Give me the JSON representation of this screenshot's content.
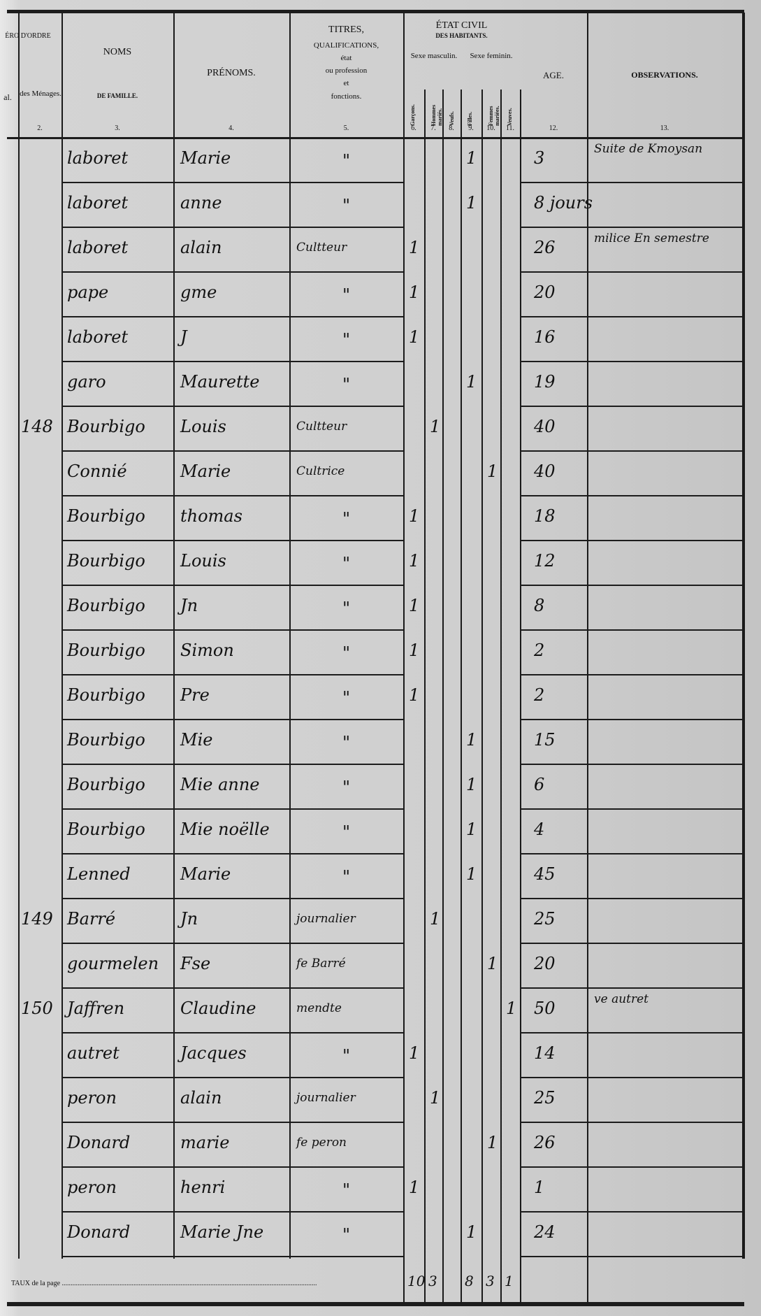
{
  "header": {
    "col1_title": "ÉRO D'ORDRE",
    "col1_sub": "al.",
    "col2": "des Ménages.",
    "noms": "NOMS",
    "noms_sub": "DE FAMILLE.",
    "prenoms": "PRÉNOMS.",
    "titres": "TITRES,",
    "titres_sub": [
      "QUALIFICATIONS,",
      "état",
      "ou profession",
      "et",
      "fonctions."
    ],
    "etat_civil": "ÉTAT CIVIL",
    "etat_sub": "DES HABITANTS.",
    "sexe_m": "Sexe masculin.",
    "sexe_f": "Sexe feminin.",
    "sub_cols": [
      "Garçons.",
      "Hommes mariés.",
      "Veufs.",
      "Filles.",
      "Femmes mariées.",
      "Veuves."
    ],
    "age": "AGE.",
    "observations": "OBSERVATIONS.",
    "numbers": [
      "2.",
      "3.",
      "4.",
      "5.",
      "6.",
      "7.",
      "8.",
      "9.",
      "10.",
      "11.",
      "12.",
      "13."
    ]
  },
  "rows": [
    {
      "menage": "",
      "nom": "laboret",
      "prenom": "Marie",
      "titre": "\"",
      "col": 9,
      "age": "3",
      "obs": "Suite de Kmoysan"
    },
    {
      "menage": "",
      "nom": "laboret",
      "prenom": "anne",
      "titre": "\"",
      "col": 9,
      "age": "8 jours",
      "obs": ""
    },
    {
      "menage": "",
      "nom": "laboret",
      "prenom": "alain",
      "titre": "Cultteur",
      "col": 6,
      "age": "26",
      "obs": "milice En semestre"
    },
    {
      "menage": "",
      "nom": "pape",
      "prenom": "gme",
      "titre": "\"",
      "col": 6,
      "age": "20",
      "obs": ""
    },
    {
      "menage": "",
      "nom": "laboret",
      "prenom": "J",
      "titre": "\"",
      "col": 6,
      "age": "16",
      "obs": ""
    },
    {
      "menage": "",
      "nom": "garo",
      "prenom": "Maurette",
      "titre": "\"",
      "col": 9,
      "age": "19",
      "obs": ""
    },
    {
      "menage": "148",
      "nom": "Bourbigo",
      "prenom": "Louis",
      "titre": "Cultteur",
      "col": 7,
      "age": "40",
      "obs": ""
    },
    {
      "menage": "",
      "nom": "Connié",
      "prenom": "Marie",
      "titre": "Cultrice",
      "col": 10,
      "age": "40",
      "obs": ""
    },
    {
      "menage": "",
      "nom": "Bourbigo",
      "prenom": "thomas",
      "titre": "\"",
      "col": 6,
      "age": "18",
      "obs": ""
    },
    {
      "menage": "",
      "nom": "Bourbigo",
      "prenom": "Louis",
      "titre": "\"",
      "col": 6,
      "age": "12",
      "obs": ""
    },
    {
      "menage": "",
      "nom": "Bourbigo",
      "prenom": "Jn",
      "titre": "\"",
      "col": 6,
      "age": "8",
      "obs": ""
    },
    {
      "menage": "",
      "nom": "Bourbigo",
      "prenom": "Simon",
      "titre": "\"",
      "col": 6,
      "age": "2",
      "obs": ""
    },
    {
      "menage": "",
      "nom": "Bourbigo",
      "prenom": "Pre",
      "titre": "\"",
      "col": 6,
      "age": "2",
      "obs": ""
    },
    {
      "menage": "",
      "nom": "Bourbigo",
      "prenom": "Mie",
      "titre": "\"",
      "col": 9,
      "age": "15",
      "obs": ""
    },
    {
      "menage": "",
      "nom": "Bourbigo",
      "prenom": "Mie anne",
      "titre": "\"",
      "col": 9,
      "age": "6",
      "obs": ""
    },
    {
      "menage": "",
      "nom": "Bourbigo",
      "prenom": "Mie noëlle",
      "titre": "\"",
      "col": 9,
      "age": "4",
      "obs": ""
    },
    {
      "menage": "",
      "nom": "Lenned",
      "prenom": "Marie",
      "titre": "\"",
      "col": 9,
      "age": "45",
      "obs": ""
    },
    {
      "menage": "149",
      "nom": "Barré",
      "prenom": "Jn",
      "titre": "journalier",
      "col": 7,
      "age": "25",
      "obs": ""
    },
    {
      "menage": "",
      "nom": "gourmelen",
      "prenom": "Fse",
      "titre": "fe Barré",
      "col": 10,
      "age": "20",
      "obs": ""
    },
    {
      "menage": "150",
      "nom": "Jaffren",
      "prenom": "Claudine",
      "titre": "mendte",
      "col": 11,
      "age": "50",
      "obs": "ve autret"
    },
    {
      "menage": "",
      "nom": "autret",
      "prenom": "Jacques",
      "titre": "\"",
      "col": 6,
      "age": "14",
      "obs": ""
    },
    {
      "menage": "",
      "nom": "peron",
      "prenom": "alain",
      "titre": "journalier",
      "col": 7,
      "age": "25",
      "obs": ""
    },
    {
      "menage": "",
      "nom": "Donard",
      "prenom": "marie",
      "titre": "fe peron",
      "col": 10,
      "age": "26",
      "obs": ""
    },
    {
      "menage": "",
      "nom": "peron",
      "prenom": "henri",
      "titre": "\"",
      "col": 6,
      "age": "1",
      "obs": ""
    },
    {
      "menage": "",
      "nom": "Donard",
      "prenom": "Marie Jne",
      "titre": "\"",
      "col": 9,
      "age": "24",
      "obs": ""
    }
  ],
  "totals": {
    "label": "TAUX de la page",
    "col6": "10",
    "col7": "3",
    "col8": "",
    "col9": "8",
    "col10": "3",
    "col11": "1"
  }
}
